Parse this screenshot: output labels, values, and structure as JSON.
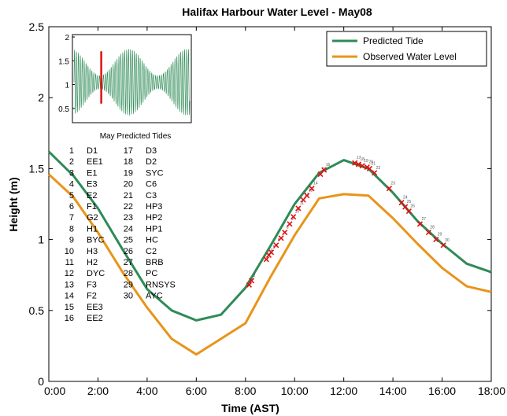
{
  "chart_data": {
    "type": "line",
    "title": "Halifax Harbour Water Level - May08",
    "xlabel": "Time (AST)",
    "ylabel": "Height (m)",
    "xlim": [
      0,
      18
    ],
    "ylim": [
      0,
      2.5
    ],
    "x_ticks": [
      0,
      2,
      4,
      6,
      8,
      10,
      12,
      14,
      16,
      18
    ],
    "x_tick_labels": [
      "0:00",
      "2:00",
      "4:00",
      "6:00",
      "8:00",
      "10:00",
      "12:00",
      "14:00",
      "16:00",
      "18:00"
    ],
    "y_ticks": [
      0,
      0.5,
      1,
      1.5,
      2,
      2.5
    ],
    "y_tick_labels": [
      "0",
      "0.5",
      "1",
      "1.5",
      "2",
      "2.5"
    ],
    "grid": false,
    "legend_position": "top-right",
    "series": [
      {
        "name": "Predicted Tide",
        "color": "#2e8b57",
        "x": [
          0,
          1,
          2,
          3,
          4,
          5,
          6,
          7,
          8,
          9,
          10,
          11,
          12,
          13,
          14,
          15,
          16,
          17,
          18
        ],
        "y": [
          1.62,
          1.45,
          1.22,
          0.93,
          0.65,
          0.5,
          0.43,
          0.47,
          0.66,
          0.95,
          1.25,
          1.47,
          1.56,
          1.5,
          1.33,
          1.13,
          0.97,
          0.83,
          0.77
        ]
      },
      {
        "name": "Observed Water Level",
        "color": "#e8941a",
        "x": [
          0,
          1,
          2,
          3,
          4,
          5,
          6,
          7,
          8,
          9,
          10,
          11,
          12,
          13,
          14,
          15,
          16,
          17,
          18
        ],
        "y": [
          1.46,
          1.3,
          1.05,
          0.77,
          0.52,
          0.3,
          0.19,
          0.3,
          0.41,
          0.73,
          1.03,
          1.29,
          1.32,
          1.31,
          1.15,
          0.97,
          0.8,
          0.67,
          0.63
        ]
      }
    ],
    "markers": {
      "color": "#e01010",
      "points": [
        {
          "x": 8.15,
          "y": 0.68,
          "label": "1"
        },
        {
          "x": 8.25,
          "y": 0.71,
          "label": "2"
        },
        {
          "x": 8.85,
          "y": 0.86,
          "label": "3"
        },
        {
          "x": 8.95,
          "y": 0.89,
          "label": "4"
        },
        {
          "x": 9.05,
          "y": 0.91,
          "label": "5"
        },
        {
          "x": 9.25,
          "y": 0.96,
          "label": "6"
        },
        {
          "x": 9.45,
          "y": 1.01,
          "label": "7"
        },
        {
          "x": 9.6,
          "y": 1.05,
          "label": "8"
        },
        {
          "x": 9.8,
          "y": 1.11,
          "label": "9"
        },
        {
          "x": 9.95,
          "y": 1.16,
          "label": "10"
        },
        {
          "x": 10.15,
          "y": 1.22,
          "label": "11"
        },
        {
          "x": 10.35,
          "y": 1.28,
          "label": "12"
        },
        {
          "x": 10.5,
          "y": 1.31,
          "label": "13"
        },
        {
          "x": 10.7,
          "y": 1.36,
          "label": "14"
        },
        {
          "x": 11.05,
          "y": 1.46,
          "label": "15"
        },
        {
          "x": 11.2,
          "y": 1.49,
          "label": "16"
        },
        {
          "x": 12.45,
          "y": 1.54,
          "label": "17"
        },
        {
          "x": 12.6,
          "y": 1.53,
          "label": "18"
        },
        {
          "x": 12.75,
          "y": 1.52,
          "label": "19"
        },
        {
          "x": 12.95,
          "y": 1.51,
          "label": "20"
        },
        {
          "x": 13.05,
          "y": 1.5,
          "label": "21"
        },
        {
          "x": 13.25,
          "y": 1.47,
          "label": "22"
        },
        {
          "x": 13.85,
          "y": 1.36,
          "label": "23"
        },
        {
          "x": 14.35,
          "y": 1.26,
          "label": "24"
        },
        {
          "x": 14.5,
          "y": 1.23,
          "label": "25"
        },
        {
          "x": 14.65,
          "y": 1.2,
          "label": "26"
        },
        {
          "x": 15.1,
          "y": 1.11,
          "label": "27"
        },
        {
          "x": 15.45,
          "y": 1.05,
          "label": "28"
        },
        {
          "x": 15.75,
          "y": 1.0,
          "label": "29"
        },
        {
          "x": 16.05,
          "y": 0.96,
          "label": "30"
        }
      ]
    },
    "inset": {
      "title": "May Predicted Tides",
      "type": "line",
      "y_ticks": [
        0.5,
        1,
        1.5,
        2
      ],
      "y_tick_labels": [
        "0.5",
        "1",
        "1.5",
        "2"
      ],
      "ylim": [
        0.2,
        2.05
      ],
      "series_color": "#2e8b57",
      "highlight_color": "#e01010"
    },
    "site_list": [
      {
        "num": "1",
        "code": "D1"
      },
      {
        "num": "2",
        "code": "EE1"
      },
      {
        "num": "3",
        "code": "E1"
      },
      {
        "num": "4",
        "code": "E3"
      },
      {
        "num": "5",
        "code": "E2"
      },
      {
        "num": "6",
        "code": "F1"
      },
      {
        "num": "7",
        "code": "G2"
      },
      {
        "num": "8",
        "code": "H1"
      },
      {
        "num": "9",
        "code": "BYC"
      },
      {
        "num": "10",
        "code": "H3"
      },
      {
        "num": "11",
        "code": "H2"
      },
      {
        "num": "12",
        "code": "DYC"
      },
      {
        "num": "13",
        "code": "F3"
      },
      {
        "num": "14",
        "code": "F2"
      },
      {
        "num": "15",
        "code": "EE3"
      },
      {
        "num": "16",
        "code": "EE2"
      },
      {
        "num": "17",
        "code": "D3"
      },
      {
        "num": "18",
        "code": "D2"
      },
      {
        "num": "19",
        "code": "SYC"
      },
      {
        "num": "20",
        "code": "C6"
      },
      {
        "num": "21",
        "code": "C3"
      },
      {
        "num": "22",
        "code": "HP3"
      },
      {
        "num": "23",
        "code": "HP2"
      },
      {
        "num": "24",
        "code": "HP1"
      },
      {
        "num": "25",
        "code": "HC"
      },
      {
        "num": "26",
        "code": "C2"
      },
      {
        "num": "27",
        "code": "BRB"
      },
      {
        "num": "28",
        "code": "PC"
      },
      {
        "num": "29",
        "code": "RNSYS"
      },
      {
        "num": "30",
        "code": "AYC"
      }
    ]
  }
}
